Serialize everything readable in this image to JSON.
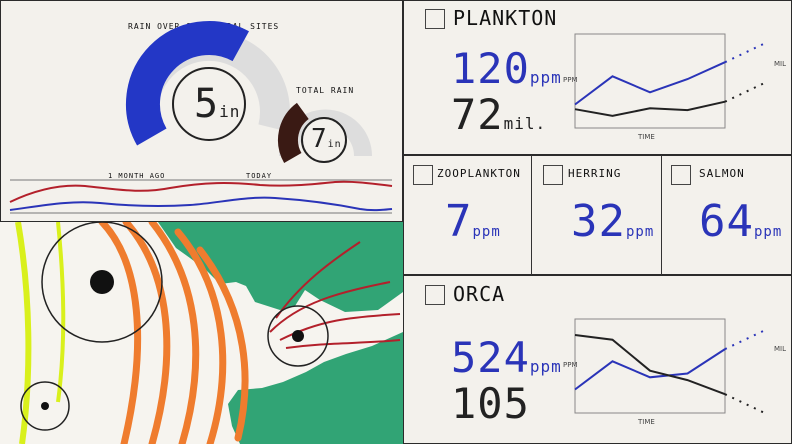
{
  "gauges": {
    "main": {
      "title": "RAIN OVER SOUNDRIDAL SITES",
      "value": "5",
      "unit": "in",
      "fill_fraction": 0.62,
      "color": "#2337c6"
    },
    "total": {
      "title": "TOTAL RAIN",
      "value": "7",
      "unit": "in",
      "fill_fraction": 0.35,
      "color": "#3a1a14"
    }
  },
  "sparkline": {
    "label_left": "1 MONTH AGO",
    "label_right": "TODAY"
  },
  "plankton": {
    "label": "PLANKTON",
    "ppm_value": "120",
    "ppm_unit": "ppm",
    "count_value": "72",
    "count_unit": "mil."
  },
  "zooplankton": {
    "label": "ZOOPLANKTON",
    "value": "7",
    "unit": "ppm"
  },
  "herring": {
    "label": "HERRING",
    "value": "32",
    "unit": "ppm"
  },
  "salmon": {
    "label": "SALMON",
    "value": "64",
    "unit": "ppm"
  },
  "orca": {
    "label": "ORCA",
    "ppm_value": "524",
    "ppm_unit": "ppm",
    "count_value": "105"
  },
  "colors": {
    "blue": "#2a34b8",
    "black": "#222222",
    "orange": "#ef7c2e",
    "green": "#1f9c6a",
    "yellow": "#d9f01c",
    "red": "#b3202b"
  },
  "charts": {
    "plankton": {
      "x_label": "TIME",
      "y_label": "PPM",
      "y2_label": "MIL",
      "series_blue": [
        0.25,
        0.55,
        0.38,
        0.52,
        0.7
      ],
      "series_black": [
        0.2,
        0.13,
        0.21,
        0.19,
        0.28
      ]
    },
    "orca": {
      "x_label": "TIME",
      "y_label": "PPM",
      "y2_label": "MIL",
      "series_blue": [
        0.25,
        0.55,
        0.38,
        0.42,
        0.68
      ],
      "series_black": [
        0.83,
        0.78,
        0.45,
        0.35,
        0.2
      ]
    }
  }
}
